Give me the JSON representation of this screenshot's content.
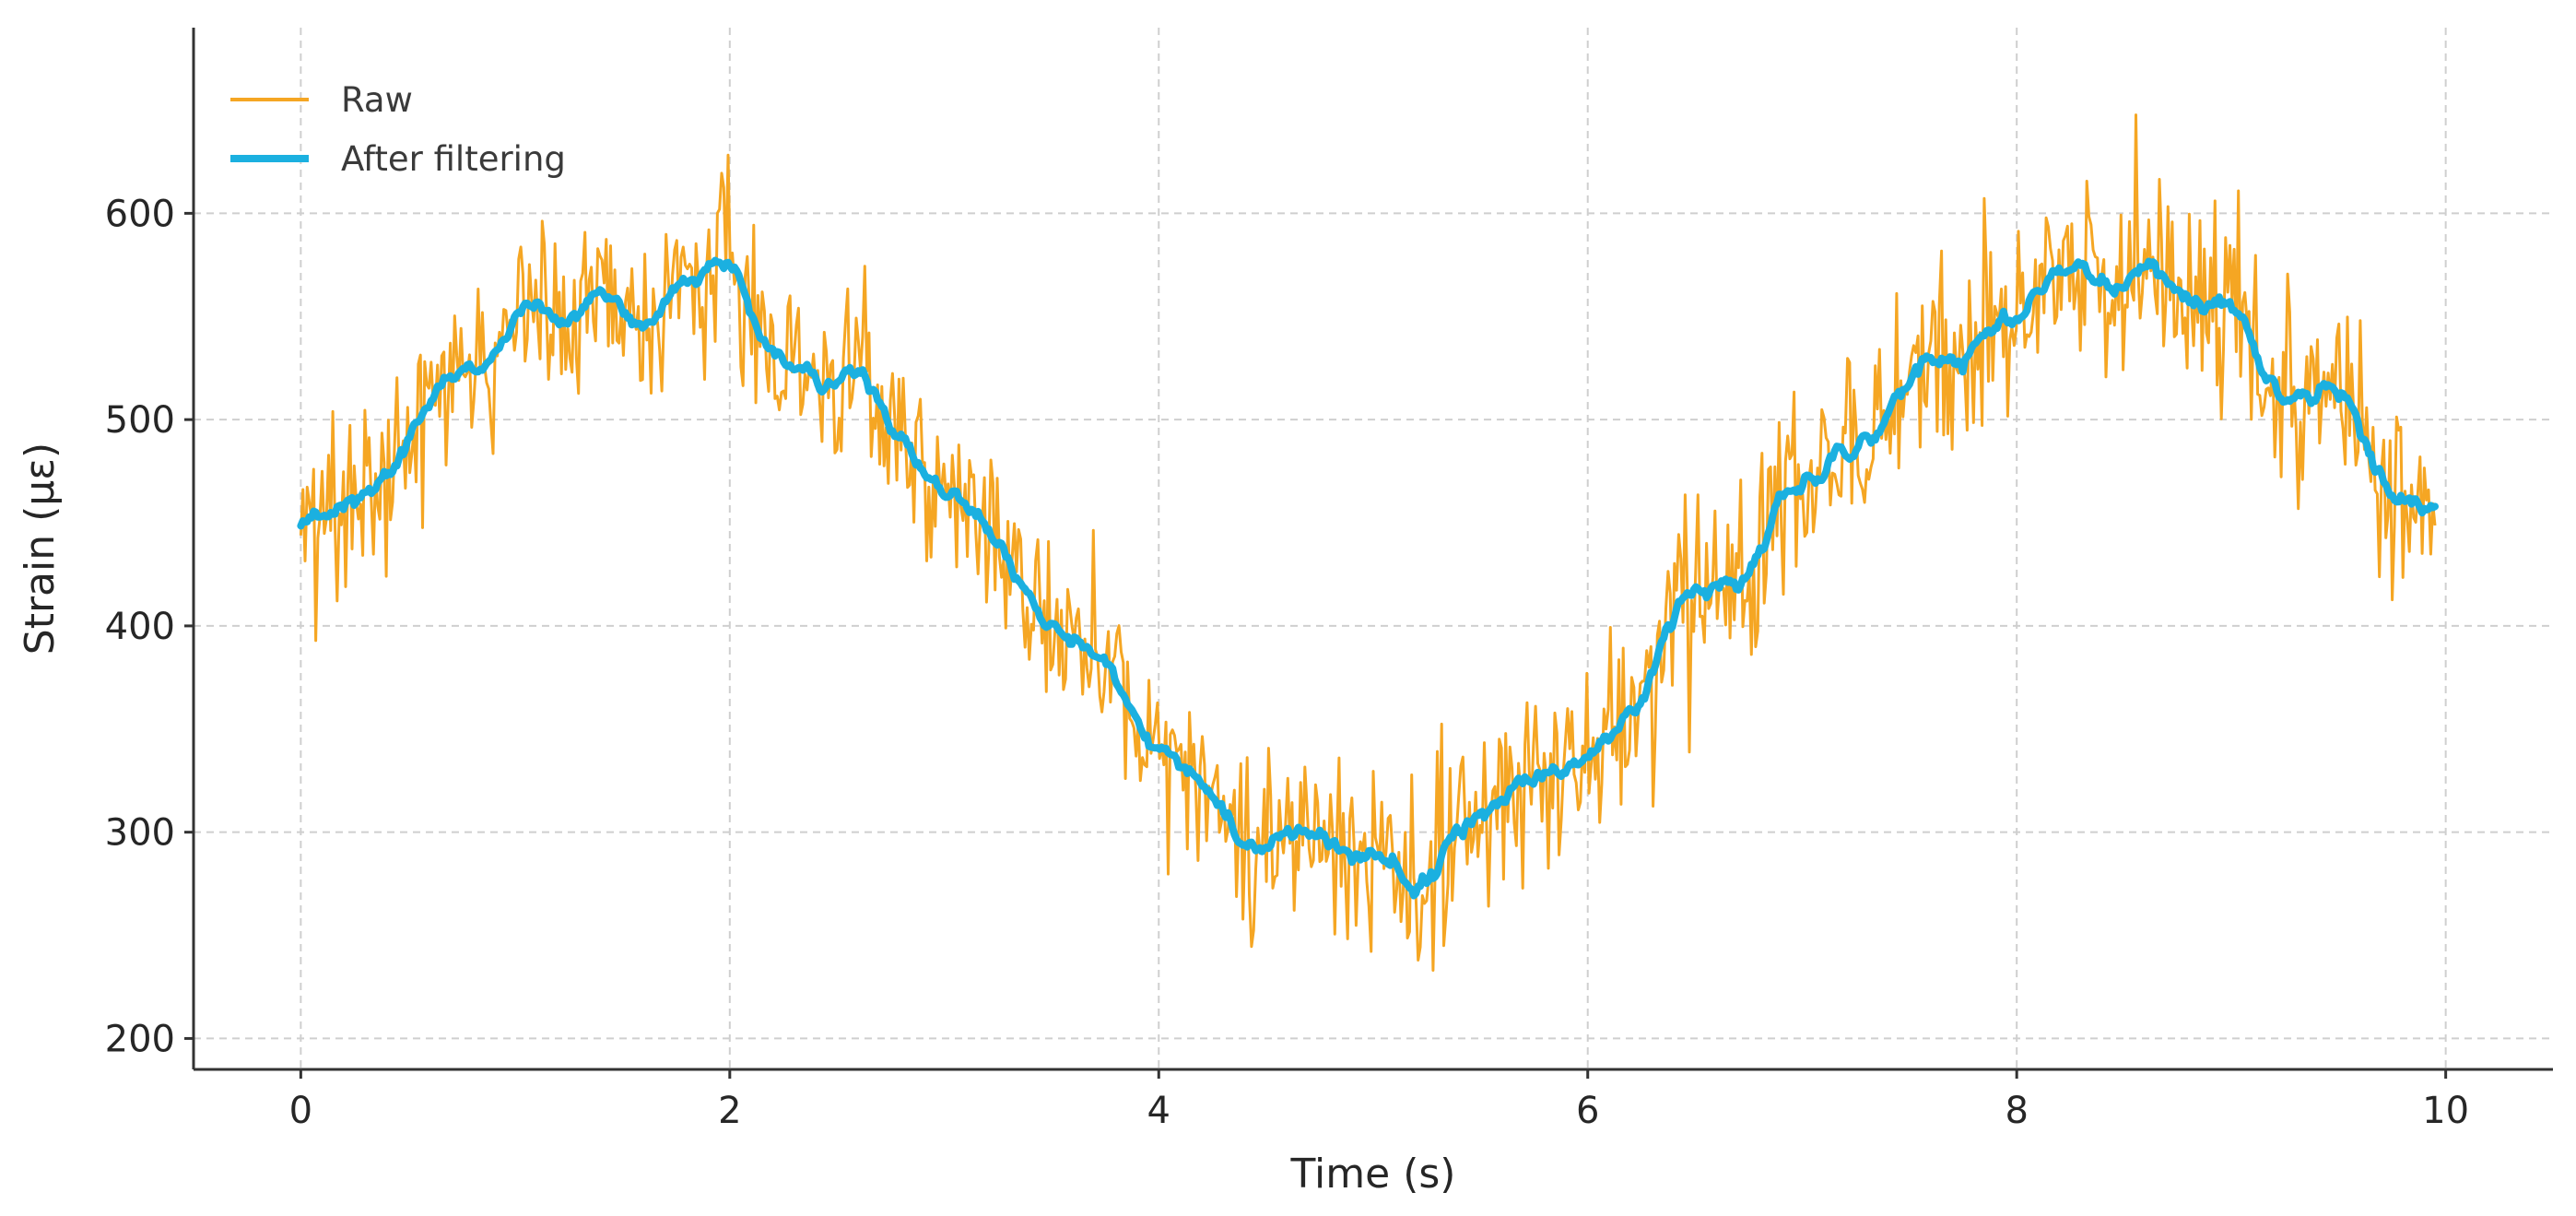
{
  "chart_data": {
    "type": "line",
    "title": "",
    "xlabel": "Time (s)",
    "ylabel": "Strain (με)",
    "xlim": [
      -0.5,
      10.5
    ],
    "ylim": [
      185,
      690
    ],
    "xticks": [
      0,
      2,
      4,
      6,
      8,
      10
    ],
    "yticks": [
      200,
      300,
      400,
      500,
      600
    ],
    "grid": true,
    "legend_position": "top-left",
    "series": [
      {
        "name": "Raw",
        "color": "#F5A623",
        "style": "thin-noisy",
        "description_points": {
          "x": [
            0.0,
            0.25,
            0.5,
            0.75,
            1.0,
            1.25,
            1.5,
            1.75,
            2.0,
            2.25,
            2.5,
            2.75,
            3.0,
            3.25,
            3.5,
            3.75,
            4.0,
            4.25,
            4.5,
            4.75,
            5.0,
            5.25,
            5.5,
            5.75,
            6.0,
            6.25,
            6.5,
            6.75,
            7.0,
            7.25,
            7.5,
            7.75,
            8.0,
            8.25,
            8.5,
            8.75,
            9.0,
            9.25,
            9.5,
            9.75,
            9.95
          ],
          "y": [
            435,
            455,
            490,
            515,
            540,
            555,
            565,
            570,
            560,
            545,
            525,
            505,
            470,
            440,
            410,
            375,
            345,
            320,
            300,
            290,
            285,
            285,
            295,
            310,
            340,
            365,
            400,
            430,
            465,
            490,
            515,
            535,
            555,
            560,
            570,
            555,
            535,
            520,
            500,
            470,
            440
          ]
        }
      },
      {
        "name": "After filtering",
        "color": "#1BB0E0",
        "style": "thick-smoothed",
        "values_from": "Raw"
      }
    ],
    "noise_seed": 42
  }
}
